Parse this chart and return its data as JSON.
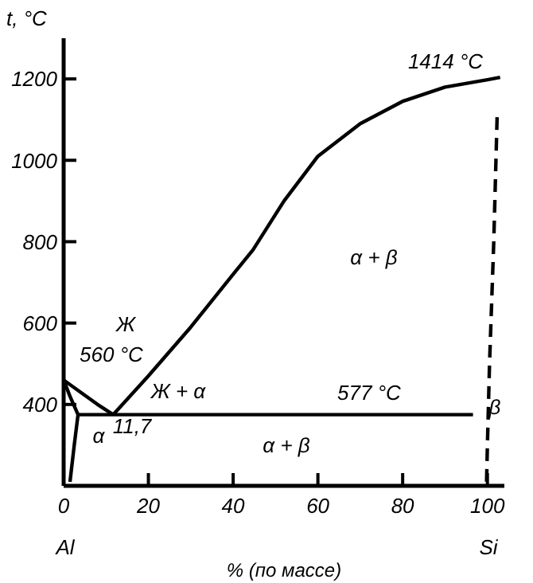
{
  "chart_data": {
    "type": "line",
    "xlabel": "% (по массе)",
    "ylabel": "t, °C",
    "xlim": [
      0,
      104
    ],
    "ylim": [
      200,
      1300
    ],
    "xticks": [
      0,
      20,
      40,
      60,
      80,
      100
    ],
    "yticks": [
      400,
      600,
      800,
      1000,
      1200
    ],
    "marker": "none",
    "series": [
      {
        "color": "#000000",
        "x": [
          0,
          4,
          8,
          11.7
        ],
        "values": [
          460,
          430,
          400,
          375
        ]
      },
      {
        "color": "#000000",
        "x": [
          11.7,
          20,
          30,
          40,
          44.7,
          52,
          60,
          70,
          80,
          90,
          100,
          103
        ],
        "values": [
          375,
          470,
          590,
          720,
          780,
          900,
          1010,
          1090,
          1145,
          1180,
          1198,
          1204
        ]
      },
      {
        "color": "#000000",
        "x": [
          3.4,
          96.6
        ],
        "values": [
          375,
          375
        ]
      },
      {
        "color": "#000000",
        "x": [
          0,
          1.5,
          3.4,
          2.5,
          1.5
        ],
        "values": [
          460,
          420,
          375,
          300,
          210
        ]
      },
      {
        "color": "#000000",
        "line_style": "dashed",
        "x": [
          99.8,
          100,
          100.5,
          101.5,
          102.3
        ],
        "values": [
          210,
          300,
          500,
          800,
          1110
        ]
      }
    ],
    "annotations": [
      "Ж",
      "560 °C",
      "Ж + α",
      "11,7",
      "α",
      "α + β",
      "α + β",
      "577 °C",
      "1414 °C",
      "β",
      "Al",
      "Si"
    ]
  }
}
